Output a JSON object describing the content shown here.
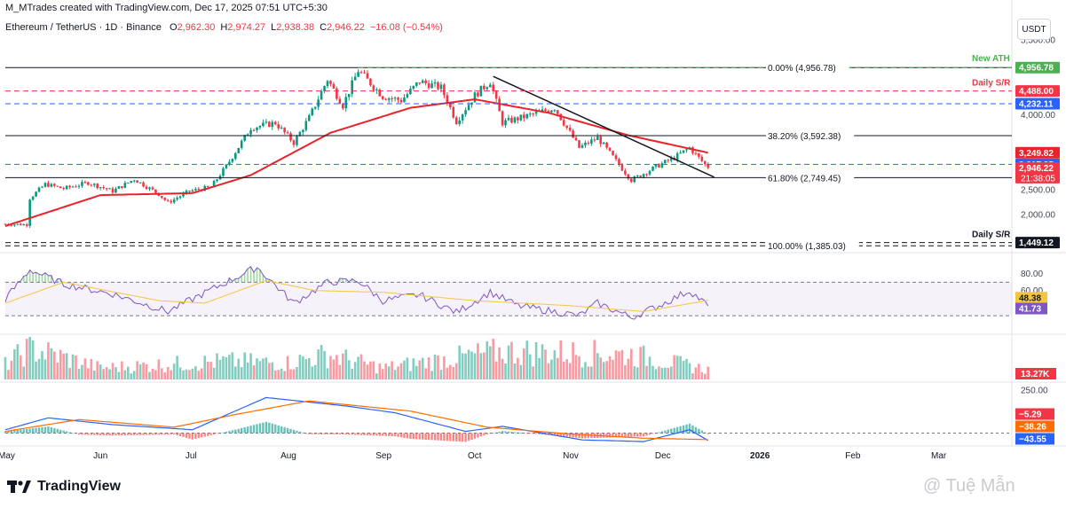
{
  "header": {
    "credit": "M_MTrades created with TradingView.com, Dec 17, 2025 07:51 UTC+5:30",
    "symbol": "Ethereum / TetherUS · 1D · Binance",
    "ohlc": [
      {
        "k": "O",
        "v": "2,962.30"
      },
      {
        "k": "H",
        "v": "2,974.27"
      },
      {
        "k": "L",
        "v": "2,938.38"
      },
      {
        "k": "C",
        "v": "2,946.22"
      },
      {
        "k": "",
        "v": "−16.08 (−0.54%)"
      }
    ],
    "currency": "USDT"
  },
  "colors": {
    "up": "#089981",
    "down": "#f23645",
    "ma": "#e8232a",
    "rsi": "#7e57c2",
    "rsi_ma": "#f5c542",
    "macd": "#2962ff",
    "signal": "#ff6d00",
    "fib": "#131722",
    "ath": "#4caf50",
    "sr_red": "#f23645",
    "sr_blue": "#2962ff"
  },
  "chart_data": [
    {
      "type": "candlestick",
      "panel": "price",
      "x_range": [
        "2025-05-01",
        "2026-03-25"
      ],
      "y_range": [
        1300,
        5600
      ],
      "y_ticks": [
        "5,500.00",
        "4,500.00",
        "4,000.00",
        "2,500.00",
        "2,000.00"
      ],
      "x_ticks": [
        "May",
        "Jun",
        "Jul",
        "Aug",
        "Sep",
        "Oct",
        "Nov",
        "Dec",
        "2026",
        "Feb",
        "Mar"
      ],
      "anchors": [
        [
          "2025-05-01",
          1820
        ],
        [
          "2025-05-08",
          1810
        ],
        [
          "2025-05-09",
          2340
        ],
        [
          "2025-05-14",
          2620
        ],
        [
          "2025-05-20",
          2530
        ],
        [
          "2025-05-28",
          2650
        ],
        [
          "2025-06-05",
          2480
        ],
        [
          "2025-06-12",
          2720
        ],
        [
          "2025-06-20",
          2420
        ],
        [
          "2025-06-23",
          2250
        ],
        [
          "2025-06-30",
          2480
        ],
        [
          "2025-07-07",
          2560
        ],
        [
          "2025-07-12",
          2980
        ],
        [
          "2025-07-20",
          3750
        ],
        [
          "2025-07-28",
          3850
        ],
        [
          "2025-08-03",
          3450
        ],
        [
          "2025-08-08",
          3950
        ],
        [
          "2025-08-14",
          4720
        ],
        [
          "2025-08-19",
          4200
        ],
        [
          "2025-08-24",
          4900
        ],
        [
          "2025-09-01",
          4380
        ],
        [
          "2025-09-07",
          4300
        ],
        [
          "2025-09-13",
          4680
        ],
        [
          "2025-09-20",
          4550
        ],
        [
          "2025-09-25",
          3880
        ],
        [
          "2025-10-01",
          4400
        ],
        [
          "2025-10-06",
          4680
        ],
        [
          "2025-10-10",
          3850
        ],
        [
          "2025-10-16",
          3950
        ],
        [
          "2025-10-27",
          4150
        ],
        [
          "2025-11-04",
          3350
        ],
        [
          "2025-11-10",
          3550
        ],
        [
          "2025-11-21",
          2700
        ],
        [
          "2025-11-30",
          3000
        ],
        [
          "2025-12-05",
          3150
        ],
        [
          "2025-12-10",
          3350
        ],
        [
          "2025-12-16",
          2946
        ]
      ],
      "ma": {
        "name": "",
        "values": [
          [
            "2025-05-01",
            1780
          ],
          [
            "2025-06-01",
            2400
          ],
          [
            "2025-07-01",
            2440
          ],
          [
            "2025-07-20",
            2800
          ],
          [
            "2025-08-15",
            3650
          ],
          [
            "2025-09-10",
            4150
          ],
          [
            "2025-10-01",
            4320
          ],
          [
            "2025-10-25",
            4050
          ],
          [
            "2025-11-20",
            3600
          ],
          [
            "2025-12-16",
            3250
          ]
        ]
      },
      "trendline": [
        [
          "2025-10-07",
          4780
        ],
        [
          "2025-12-18",
          2760
        ]
      ],
      "levels": [
        {
          "label": "0.00% (4,956.78)",
          "value": 4956.78,
          "color": "#131722",
          "style": "solid"
        },
        {
          "label": "38.20% (3,592.38)",
          "value": 3592.38,
          "color": "#131722",
          "style": "solid"
        },
        {
          "label": "61.80% (2,749.45)",
          "value": 2749.45,
          "color": "#131722",
          "style": "solid"
        },
        {
          "label": "100.00% (1,385.03)",
          "value": 1385.03,
          "color": "#131722",
          "style": "dashed"
        },
        {
          "label": "New ATH",
          "value": 4956.78,
          "color": "#4caf50",
          "style": "dashed"
        },
        {
          "label": "Daily S/R",
          "value": 4488.0,
          "color": "#f23645",
          "style": "dashed"
        },
        {
          "label": "",
          "value": 4232.11,
          "color": "#2962ff",
          "style": "dashed"
        },
        {
          "label": "",
          "value": 3017.95,
          "color": "#2962ff",
          "style": "dashed"
        },
        {
          "label": "Daily S/R",
          "value": 1449.12,
          "color": "#131722",
          "style": "dashed"
        }
      ],
      "price_tags": [
        {
          "text": "4,956.78",
          "value": 4956.78,
          "bg": "#4caf50"
        },
        {
          "text": "4,488.00",
          "value": 4488.0,
          "bg": "#f23645"
        },
        {
          "text": "4,232.11",
          "value": 4232.11,
          "bg": "#2962ff"
        },
        {
          "text": "3,249.82",
          "value": 3249.82,
          "bg": "#e8232a"
        },
        {
          "text": "3,017.95",
          "value": 3017.95,
          "bg": "#2962ff"
        },
        {
          "text": "2,946.22",
          "value": 2946.22,
          "bg": "#f23645",
          "sub": "21:38:05"
        },
        {
          "text": "1,449.12",
          "value": 1449.12,
          "bg": "#131722"
        }
      ]
    },
    {
      "type": "line",
      "panel": "rsi",
      "y_range": [
        10,
        100
      ],
      "y_ticks": [
        "80.00",
        "60.00"
      ],
      "bands": [
        70,
        30
      ],
      "series": [
        {
          "name": "",
          "anchors": [
            [
              "2025-05-01",
              50
            ],
            [
              "2025-05-09",
              85
            ],
            [
              "2025-05-20",
              68
            ],
            [
              "2025-06-05",
              56
            ],
            [
              "2025-06-23",
              35
            ],
            [
              "2025-07-01",
              50
            ],
            [
              "2025-07-12",
              70
            ],
            [
              "2025-07-22",
              88
            ],
            [
              "2025-08-03",
              45
            ],
            [
              "2025-08-14",
              70
            ],
            [
              "2025-08-24",
              72
            ],
            [
              "2025-09-01",
              48
            ],
            [
              "2025-09-13",
              55
            ],
            [
              "2025-09-25",
              34
            ],
            [
              "2025-10-06",
              58
            ],
            [
              "2025-10-15",
              42
            ],
            [
              "2025-11-04",
              30
            ],
            [
              "2025-11-10",
              45
            ],
            [
              "2025-11-21",
              28
            ],
            [
              "2025-11-30",
              42
            ],
            [
              "2025-12-10",
              60
            ],
            [
              "2025-12-16",
              41.73
            ]
          ]
        },
        {
          "name": "",
          "anchors": [
            [
              "2025-05-01",
              45
            ],
            [
              "2025-05-20",
              70
            ],
            [
              "2025-06-20",
              48
            ],
            [
              "2025-07-05",
              45
            ],
            [
              "2025-07-25",
              72
            ],
            [
              "2025-08-10",
              60
            ],
            [
              "2025-09-01",
              58
            ],
            [
              "2025-10-01",
              48
            ],
            [
              "2025-11-01",
              42
            ],
            [
              "2025-11-25",
              35
            ],
            [
              "2025-12-16",
              48.38
            ]
          ]
        }
      ],
      "value_tags": [
        {
          "text": "48.38",
          "value": 48.38,
          "bg": "#f5c542",
          "fg": "#131722"
        },
        {
          "text": "41.73",
          "value": 41.73,
          "bg": "#7e57c2",
          "fg": "#ffffff"
        }
      ]
    },
    {
      "type": "bar",
      "panel": "volume",
      "tag": "13.27K",
      "seed_note": "",
      "profile": [
        [
          "2025-05-01",
          0.45
        ],
        [
          "2025-05-09",
          0.95
        ],
        [
          "2025-06-01",
          0.35
        ],
        [
          "2025-07-12",
          0.55
        ],
        [
          "2025-08-01",
          0.5
        ],
        [
          "2025-08-14",
          0.75
        ],
        [
          "2025-09-01",
          0.35
        ],
        [
          "2025-10-10",
          0.85
        ],
        [
          "2025-11-04",
          0.8
        ],
        [
          "2025-11-21",
          0.75
        ],
        [
          "2025-12-16",
          0.3
        ]
      ]
    },
    {
      "type": "macd",
      "panel": "macd",
      "y_range": [
        -60,
        280
      ],
      "y_ticks": [
        "250.00"
      ],
      "macd": [
        [
          "2025-05-01",
          20
        ],
        [
          "2025-05-15",
          90
        ],
        [
          "2025-06-05",
          50
        ],
        [
          "2025-07-01",
          20
        ],
        [
          "2025-07-25",
          210
        ],
        [
          "2025-08-20",
          160
        ],
        [
          "2025-09-05",
          120
        ],
        [
          "2025-09-28",
          10
        ],
        [
          "2025-10-10",
          40
        ],
        [
          "2025-11-05",
          -40
        ],
        [
          "2025-11-25",
          -50
        ],
        [
          "2025-12-10",
          20
        ],
        [
          "2025-12-16",
          -43.55
        ]
      ],
      "signal": [
        [
          "2025-05-01",
          10
        ],
        [
          "2025-05-25",
          80
        ],
        [
          "2025-06-25",
          35
        ],
        [
          "2025-07-15",
          110
        ],
        [
          "2025-08-08",
          190
        ],
        [
          "2025-09-10",
          130
        ],
        [
          "2025-10-05",
          35
        ],
        [
          "2025-11-01",
          -5
        ],
        [
          "2025-11-25",
          -30
        ],
        [
          "2025-12-16",
          -38.26
        ]
      ],
      "value_tags": [
        {
          "text": "−5.29",
          "value": -5.29,
          "bg": "#f23645"
        },
        {
          "text": "−38.26",
          "value": -38.26,
          "bg": "#ff6d00"
        },
        {
          "text": "−43.55",
          "value": -43.55,
          "bg": "#2962ff"
        }
      ]
    }
  ],
  "footer": {
    "brand": "TradingView",
    "watermark": "@ Tuệ Mẫn"
  }
}
